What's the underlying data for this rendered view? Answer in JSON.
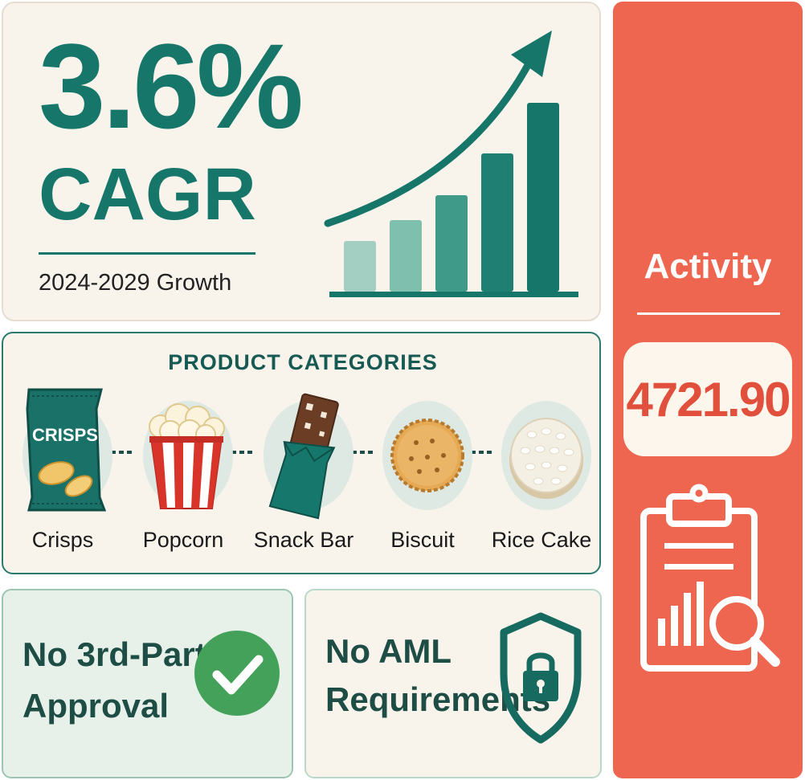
{
  "growth": {
    "headline_value": "3.6%",
    "headline_label": "CAGR",
    "subtitle": "2024-2029 Growth",
    "bar_levels": [
      0.27,
      0.38,
      0.51,
      0.73,
      1.0
    ]
  },
  "activity": {
    "title": "Activity",
    "value": "4721.90",
    "icon": "clipboard-report-icon"
  },
  "categories": {
    "heading": "PRODUCT CATEGORIES",
    "items": [
      {
        "label": "Crisps",
        "icon": "crisps-bag-icon",
        "bag_text": "CRISPS"
      },
      {
        "label": "Popcorn",
        "icon": "popcorn-icon"
      },
      {
        "label": "Snack Bar",
        "icon": "snack-bar-icon"
      },
      {
        "label": "Biscuit",
        "icon": "biscuit-icon"
      },
      {
        "label": "Rice Cake",
        "icon": "rice-cake-icon"
      }
    ]
  },
  "features": {
    "approval": {
      "line1": "No 3rd-Party",
      "line2": "Approval",
      "icon": "checkmark-icon"
    },
    "aml": {
      "line1": "No AML",
      "line2": "Requirements",
      "icon": "shield-lock-icon"
    }
  },
  "colors": {
    "teal": "#16766a",
    "coral": "#ee6650",
    "cream": "#f8f4ec",
    "green": "#43a15a"
  }
}
